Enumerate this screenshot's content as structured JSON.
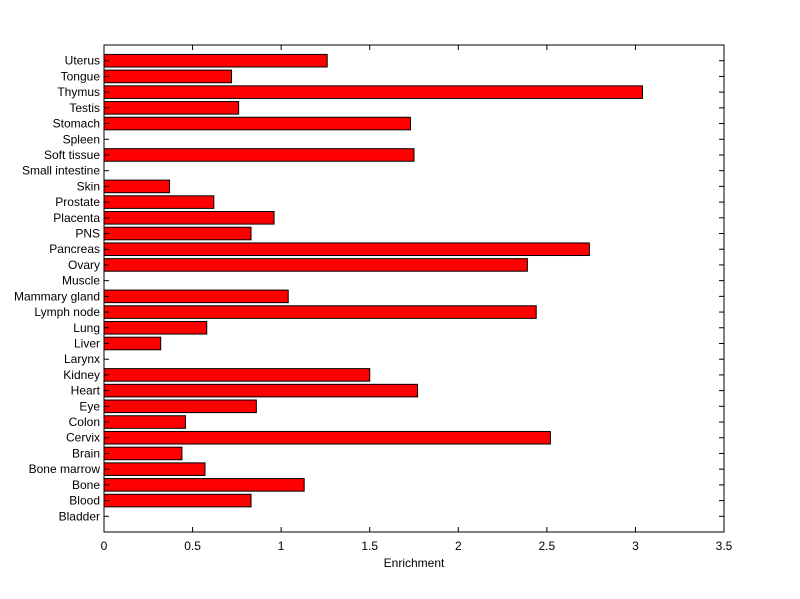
{
  "chart_data": {
    "type": "bar",
    "orientation": "horizontal",
    "title": "",
    "xlabel": "Enrichment",
    "ylabel": "",
    "xlim": [
      0,
      3.5
    ],
    "xticks": [
      0,
      0.5,
      1,
      1.5,
      2,
      2.5,
      3,
      3.5
    ],
    "xtick_labels": [
      "0",
      "0.5",
      "1",
      "1.5",
      "2",
      "2.5",
      "3",
      "3.5"
    ],
    "grid": false,
    "legend": "none",
    "bar_color": "#ff0000",
    "bar_edge_color": "#000000",
    "categories": [
      "Bladder",
      "Blood",
      "Bone",
      "Bone marrow",
      "Brain",
      "Cervix",
      "Colon",
      "Eye",
      "Heart",
      "Kidney",
      "Larynx",
      "Liver",
      "Lung",
      "Lymph node",
      "Mammary gland",
      "Muscle",
      "Ovary",
      "Pancreas",
      "PNS",
      "Placenta",
      "Prostate",
      "Skin",
      "Small intestine",
      "Soft tissue",
      "Spleen",
      "Stomach",
      "Testis",
      "Thymus",
      "Tongue",
      "Uterus"
    ],
    "values": [
      0,
      0.83,
      1.13,
      0.57,
      0.44,
      2.52,
      0.46,
      0.86,
      1.77,
      1.5,
      0,
      0.32,
      0.58,
      2.44,
      1.04,
      0,
      2.39,
      2.74,
      0.83,
      0.96,
      0.62,
      0.37,
      0,
      1.75,
      0,
      1.73,
      0.76,
      3.04,
      0.72,
      1.26
    ]
  }
}
